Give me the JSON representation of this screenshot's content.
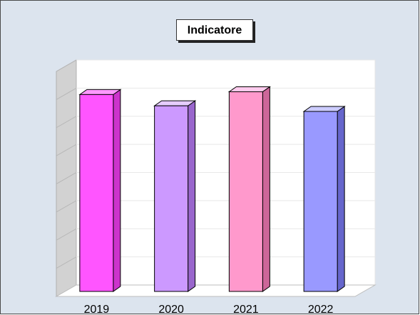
{
  "chart_data": {
    "type": "bar",
    "title": "Indicatore",
    "categories": [
      "2019",
      "2020",
      "2021",
      "2022"
    ],
    "values": [
      70,
      66,
      71,
      64
    ],
    "colors": {
      "front": [
        "#ff55ff",
        "#cc99ff",
        "#ff99cc",
        "#9999ff"
      ],
      "side": [
        "#cc33cc",
        "#9966cc",
        "#cc6699",
        "#6666cc"
      ],
      "top": [
        "#ff99ff",
        "#e6ccff",
        "#ffccee",
        "#ccccff"
      ]
    },
    "ylim": [
      0,
      80
    ],
    "grid": true,
    "style": "3d-bars"
  }
}
